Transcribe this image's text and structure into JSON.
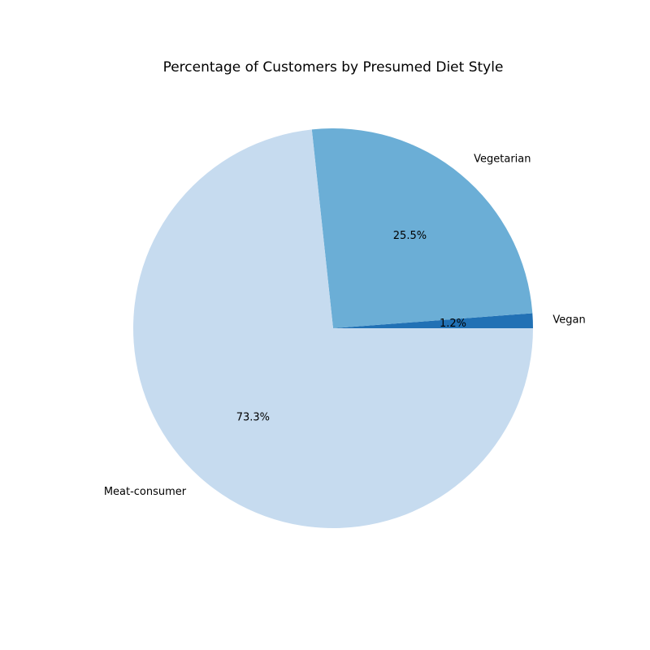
{
  "chart_data": {
    "type": "pie",
    "title": "Percentage of Customers by Presumed Diet Style",
    "start_angle_deg": 0,
    "direction": "counterclockwise",
    "slices": [
      {
        "label": "Vegan",
        "value": 1.2,
        "pct_text": "1.2%",
        "color": "#2171b5"
      },
      {
        "label": "Vegetarian",
        "value": 25.5,
        "pct_text": "25.5%",
        "color": "#6baed6"
      },
      {
        "label": "Meat-consumer",
        "value": 73.3,
        "pct_text": "73.3%",
        "color": "#c6dbef"
      }
    ]
  }
}
